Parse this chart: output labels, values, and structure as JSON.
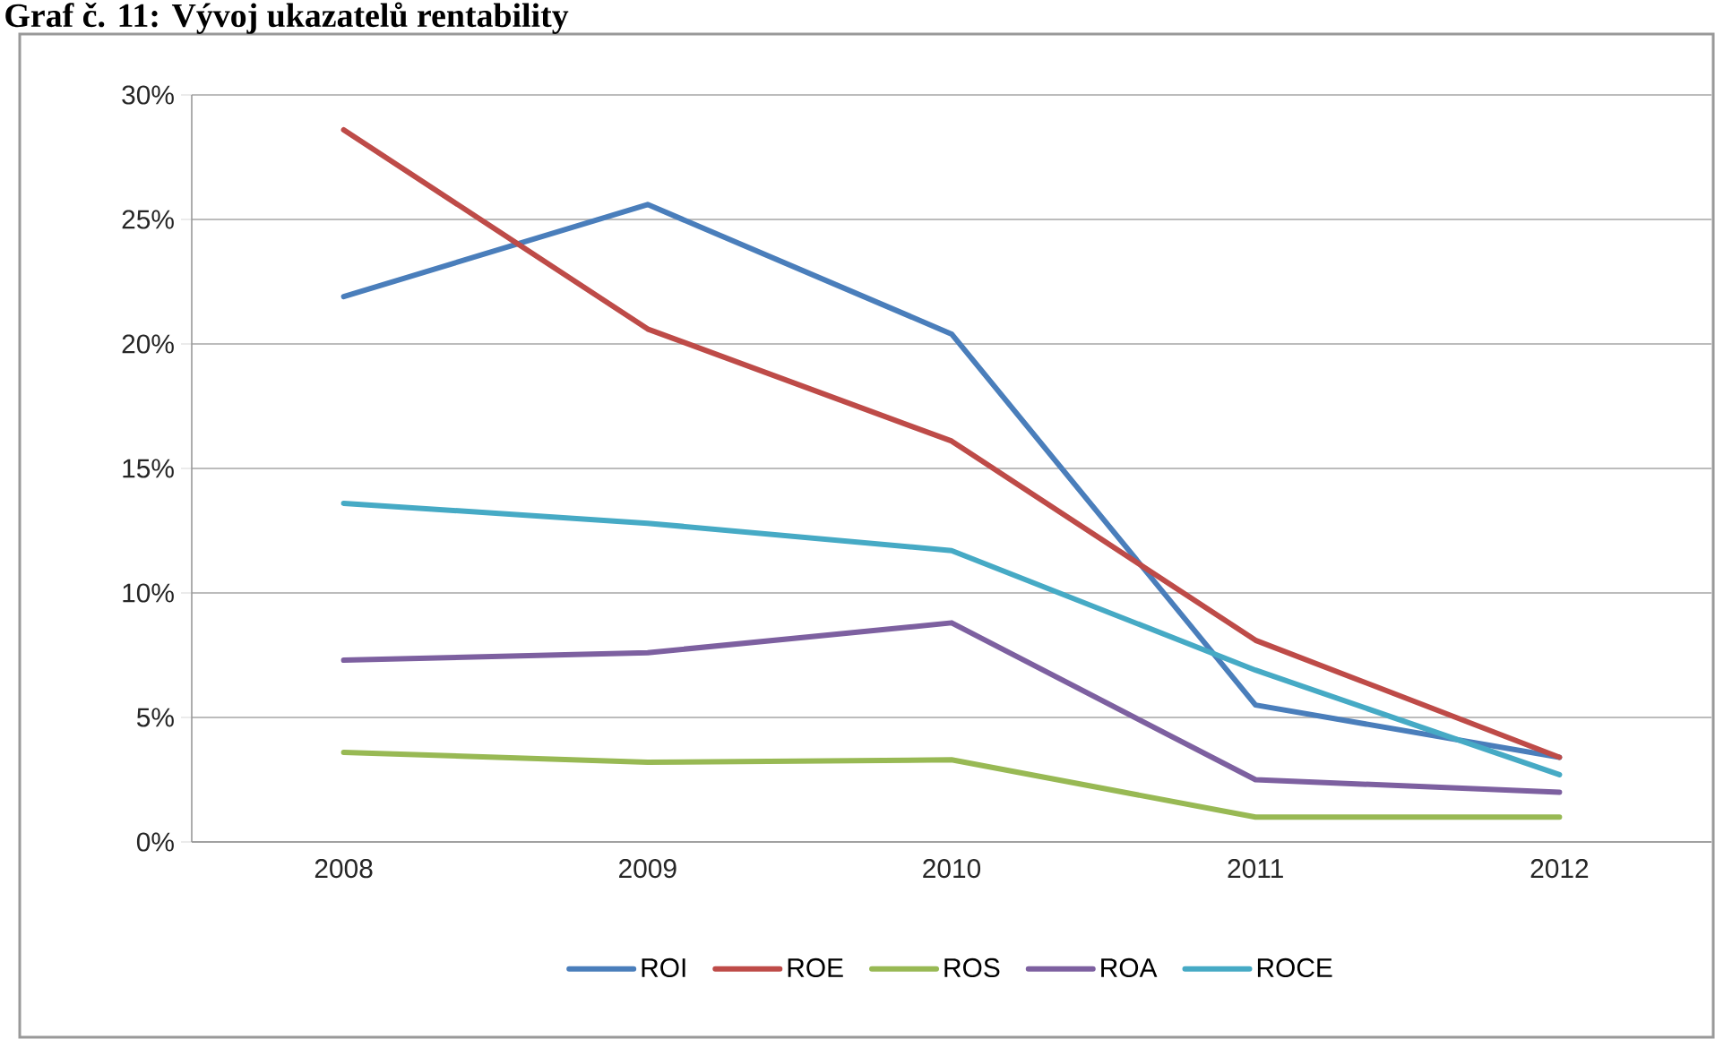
{
  "chart_data": {
    "type": "line",
    "title": "Graf č. 11: Vývoj ukazatelů rentability",
    "categories": [
      "2008",
      "2009",
      "2010",
      "2011",
      "2012"
    ],
    "series": [
      {
        "name": "ROI",
        "color": "#4a7ebb",
        "values": [
          21.9,
          25.6,
          20.4,
          5.5,
          3.4
        ]
      },
      {
        "name": "ROE",
        "color": "#be4b48",
        "values": [
          28.6,
          20.6,
          16.1,
          8.1,
          3.4
        ]
      },
      {
        "name": "ROS",
        "color": "#98b954",
        "values": [
          3.6,
          3.2,
          3.3,
          1.0,
          1.0
        ]
      },
      {
        "name": "ROA",
        "color": "#7d60a0",
        "values": [
          7.3,
          7.6,
          8.8,
          2.5,
          2.0
        ]
      },
      {
        "name": "ROCE",
        "color": "#46aac5",
        "values": [
          13.6,
          12.8,
          11.7,
          6.9,
          2.7
        ]
      }
    ],
    "ylim": [
      0,
      30
    ],
    "yticks": [
      {
        "value": 0,
        "label": "0%"
      },
      {
        "value": 5,
        "label": "5%"
      },
      {
        "value": 10,
        "label": "10%"
      },
      {
        "value": 15,
        "label": "15%"
      },
      {
        "value": 20,
        "label": "20%"
      },
      {
        "value": 25,
        "label": "25%"
      },
      {
        "value": 30,
        "label": "30%"
      }
    ],
    "grid": "y",
    "legend": "bottom"
  }
}
